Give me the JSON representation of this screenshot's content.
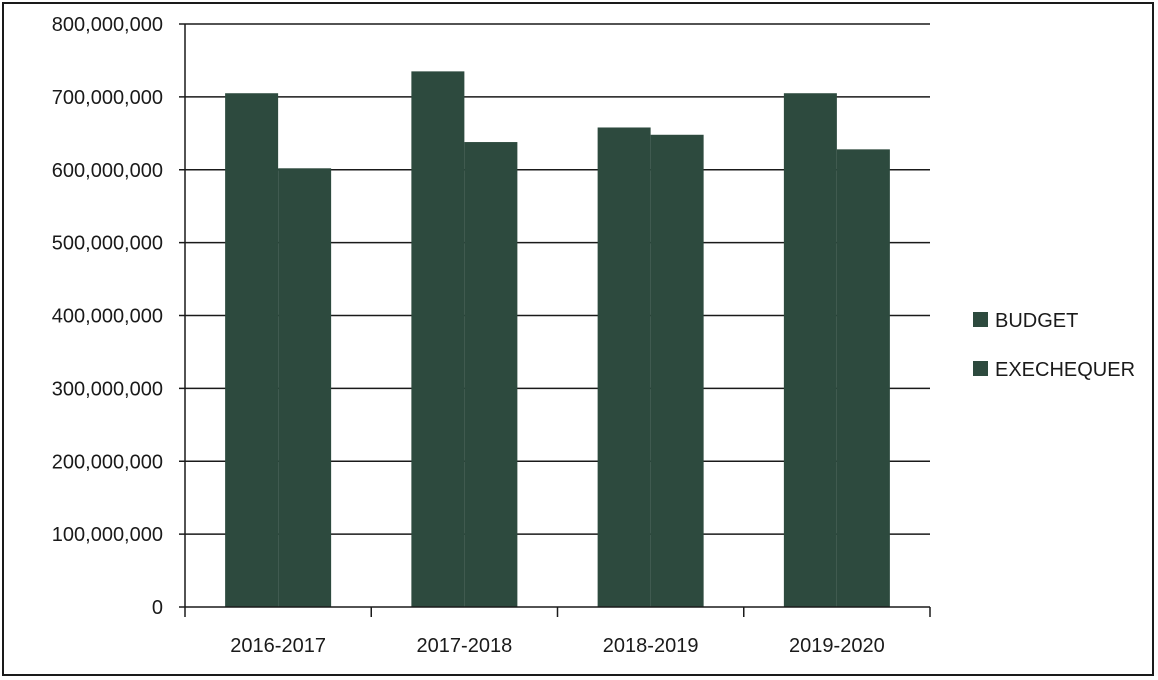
{
  "chart_data": {
    "type": "bar",
    "categories": [
      "2016-2017",
      "2017-2018",
      "2018-2019",
      "2019-2020"
    ],
    "series": [
      {
        "name": "BUDGET",
        "values": [
          705000000,
          735000000,
          658000000,
          705000000
        ]
      },
      {
        "name": "EXECHEQUER",
        "values": [
          602000000,
          638000000,
          648000000,
          628000000
        ]
      }
    ],
    "y_ticks": [
      "0",
      "100,000,000",
      "200,000,000",
      "300,000,000",
      "400,000,000",
      "500,000,000",
      "600,000,000",
      "700,000,000",
      "800,000,000"
    ],
    "ylim": [
      0,
      800000000
    ],
    "grid": true,
    "legend_position": "right",
    "colors": {
      "bar": "#2d4a3e",
      "grid": "#1a1a1a",
      "axis": "#1a1a1a"
    }
  }
}
